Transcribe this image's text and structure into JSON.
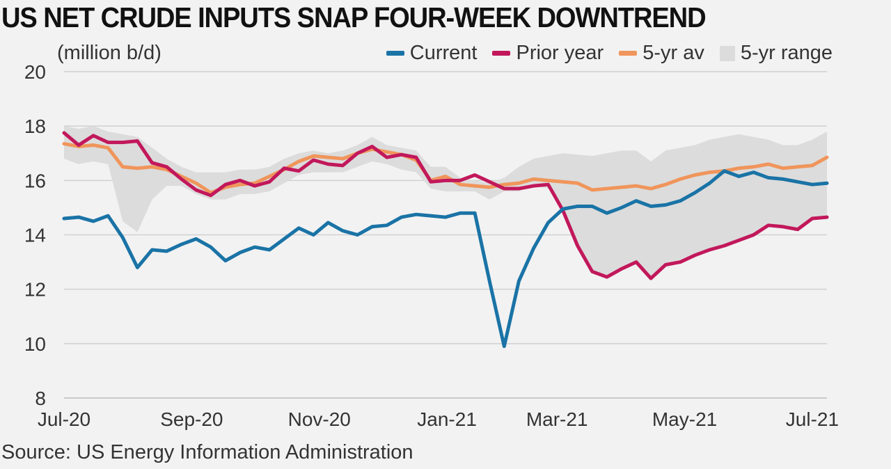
{
  "title": "US NET CRUDE INPUTS SNAP FOUR-WEEK DOWNTREND",
  "source": "Source: US Energy Information Administration",
  "colors": {
    "current": "#1a73a6",
    "prior": "#c2185b",
    "avg": "#f0955b",
    "range": "#dcdcdc",
    "grid": "#d0d0d0"
  },
  "legend": [
    {
      "key": "current",
      "label": "Current",
      "type": "line"
    },
    {
      "key": "prior",
      "label": "Prior year",
      "type": "line"
    },
    {
      "key": "avg",
      "label": "5-yr av",
      "type": "line"
    },
    {
      "key": "range",
      "label": "5-yr range",
      "type": "area"
    }
  ],
  "chart_data": {
    "type": "line",
    "title": "US NET CRUDE INPUTS SNAP FOUR-WEEK DOWNTREND",
    "ylabel": "(million b/d)",
    "xlabel": "",
    "ylim": [
      8,
      20
    ],
    "yticks": [
      8,
      10,
      12,
      14,
      16,
      18,
      20
    ],
    "x_range": [
      0,
      52
    ],
    "xticks": [
      {
        "label": "Jul-20",
        "x": 0
      },
      {
        "label": "Sep-20",
        "x": 8.7
      },
      {
        "label": "Nov-20",
        "x": 17.4
      },
      {
        "label": "Jan-21",
        "x": 26.1
      },
      {
        "label": "Mar-21",
        "x": 33.6
      },
      {
        "label": "May-21",
        "x": 42.3
      },
      {
        "label": "Jul-21",
        "x": 51
      }
    ],
    "grid": true,
    "series": [
      {
        "name": "Current",
        "key": "current",
        "values": [
          14.6,
          14.65,
          14.5,
          14.7,
          13.9,
          12.8,
          13.45,
          13.4,
          13.65,
          13.85,
          13.55,
          13.05,
          13.35,
          13.55,
          13.45,
          13.85,
          14.25,
          14.0,
          14.45,
          14.15,
          14.0,
          14.3,
          14.35,
          14.65,
          14.75,
          14.7,
          14.65,
          14.8,
          14.8,
          12.3,
          9.9,
          12.3,
          13.5,
          14.45,
          14.95,
          15.05,
          15.05,
          14.8,
          15.0,
          15.25,
          15.05,
          15.1,
          15.25,
          15.55,
          15.9,
          16.35,
          16.15,
          16.3,
          16.1,
          16.05,
          15.95,
          15.85,
          15.9
        ]
      },
      {
        "name": "Prior year",
        "key": "prior",
        "values": [
          17.75,
          17.3,
          17.65,
          17.4,
          17.4,
          17.45,
          16.65,
          16.5,
          16.05,
          15.65,
          15.45,
          15.85,
          16.0,
          15.8,
          15.95,
          16.45,
          16.35,
          16.75,
          16.6,
          16.55,
          17.0,
          17.25,
          16.85,
          16.95,
          16.85,
          15.95,
          16.0,
          16.0,
          16.2,
          15.95,
          15.7,
          15.7,
          15.8,
          15.85,
          14.9,
          13.6,
          12.65,
          12.45,
          12.75,
          13.0,
          12.4,
          12.9,
          13.0,
          13.25,
          13.45,
          13.6,
          13.8,
          14.0,
          14.35,
          14.3,
          14.2,
          14.6,
          14.65
        ]
      },
      {
        "name": "5-yr av",
        "key": "avg",
        "values": [
          17.35,
          17.25,
          17.3,
          17.2,
          16.5,
          16.45,
          16.5,
          16.4,
          16.15,
          15.9,
          15.55,
          15.75,
          15.85,
          15.9,
          16.15,
          16.4,
          16.7,
          16.9,
          16.85,
          16.8,
          17.0,
          17.15,
          17.05,
          16.95,
          16.75,
          16.0,
          16.15,
          15.85,
          15.8,
          15.75,
          15.85,
          15.9,
          16.05,
          16.0,
          15.95,
          15.9,
          15.65,
          15.7,
          15.75,
          15.8,
          15.7,
          15.85,
          16.05,
          16.2,
          16.3,
          16.35,
          16.45,
          16.5,
          16.6,
          16.45,
          16.5,
          16.55,
          16.85
        ]
      },
      {
        "name": "5-yr range (low)",
        "key": "range_low",
        "values": [
          16.8,
          16.6,
          16.7,
          16.6,
          14.5,
          14.1,
          15.3,
          15.8,
          15.8,
          15.5,
          15.3,
          15.3,
          15.5,
          15.5,
          15.6,
          15.9,
          16.2,
          16.3,
          16.3,
          16.3,
          16.5,
          16.7,
          16.6,
          16.4,
          16.3,
          15.7,
          15.6,
          15.6,
          15.6,
          15.3,
          15.6,
          15.6,
          15.8,
          15.7,
          15.0,
          13.6,
          12.7,
          12.5,
          12.8,
          13.0,
          12.4,
          12.9,
          13.0,
          13.3,
          13.4,
          13.6,
          13.8,
          14.0,
          14.3,
          14.3,
          14.2,
          14.6,
          14.6
        ]
      },
      {
        "name": "5-yr range (high)",
        "key": "range_high",
        "values": [
          18.0,
          17.9,
          18.0,
          17.8,
          17.7,
          17.6,
          17.2,
          16.8,
          16.5,
          16.3,
          16.3,
          16.3,
          16.4,
          16.4,
          16.5,
          16.8,
          17.0,
          17.1,
          17.0,
          17.1,
          17.3,
          17.6,
          17.3,
          17.2,
          17.1,
          16.5,
          16.5,
          16.1,
          16.0,
          15.9,
          16.1,
          16.5,
          16.8,
          16.9,
          17.0,
          16.95,
          16.9,
          17.0,
          17.1,
          17.1,
          16.7,
          17.1,
          17.2,
          17.3,
          17.5,
          17.6,
          17.7,
          17.6,
          17.5,
          17.3,
          17.3,
          17.5,
          17.8
        ]
      }
    ]
  }
}
